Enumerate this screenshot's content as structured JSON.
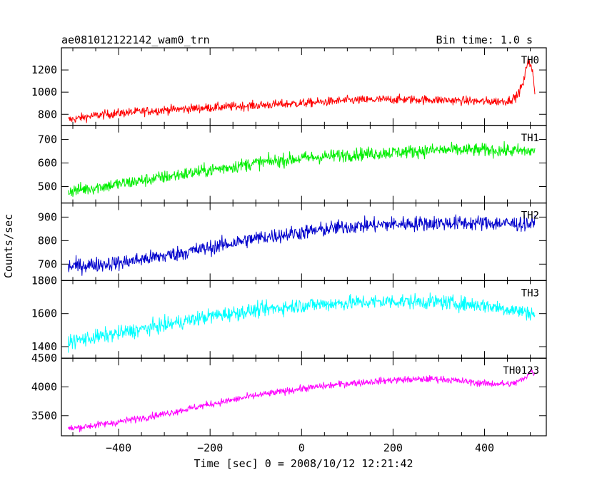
{
  "chart_data": {
    "type": "line",
    "title_left": "ae081012122142_wam0_trn",
    "title_right": "Bin time: 1.0 s",
    "xlabel": "Time [sec] 0 = 2008/10/12 12:21:42",
    "ylabel": "Counts/sec",
    "xlim": [
      -525,
      535
    ],
    "x_ticks": [
      -400,
      -200,
      0,
      200,
      400
    ],
    "x_minor_step": 50,
    "grid": false,
    "panels": [
      {
        "name": "TH0",
        "color": "#ff0000",
        "ylim": [
          700,
          1400
        ],
        "y_ticks": [
          800,
          1000,
          1200
        ],
        "points": [
          [
            -510,
            750
          ],
          [
            -450,
            790
          ],
          [
            -400,
            810
          ],
          [
            -300,
            840
          ],
          [
            -200,
            860
          ],
          [
            -100,
            880
          ],
          [
            0,
            900
          ],
          [
            100,
            925
          ],
          [
            200,
            935
          ],
          [
            300,
            930
          ],
          [
            400,
            915
          ],
          [
            450,
            920
          ],
          [
            470,
            960
          ],
          [
            485,
            1080
          ],
          [
            495,
            1300
          ],
          [
            505,
            1180
          ],
          [
            510,
            1000
          ]
        ],
        "noise": 40
      },
      {
        "name": "TH1",
        "color": "#00ee00",
        "ylim": [
          430,
          760
        ],
        "y_ticks": [
          500,
          600,
          700
        ],
        "points": [
          [
            -510,
            480
          ],
          [
            -400,
            510
          ],
          [
            -300,
            540
          ],
          [
            -200,
            570
          ],
          [
            -100,
            600
          ],
          [
            0,
            620
          ],
          [
            100,
            635
          ],
          [
            200,
            645
          ],
          [
            300,
            655
          ],
          [
            400,
            655
          ],
          [
            510,
            650
          ]
        ],
        "noise": 28
      },
      {
        "name": "TH2",
        "color": "#0000cc",
        "ylim": [
          630,
          960
        ],
        "y_ticks": [
          700,
          800,
          900
        ],
        "points": [
          [
            -510,
            690
          ],
          [
            -400,
            705
          ],
          [
            -300,
            735
          ],
          [
            -200,
            770
          ],
          [
            -100,
            810
          ],
          [
            0,
            835
          ],
          [
            100,
            860
          ],
          [
            200,
            870
          ],
          [
            300,
            875
          ],
          [
            400,
            875
          ],
          [
            510,
            870
          ]
        ],
        "noise": 32
      },
      {
        "name": "TH3",
        "color": "#00ffff",
        "ylim": [
          1330,
          1800
        ],
        "y_ticks": [
          1400,
          1600,
          1800
        ],
        "points": [
          [
            -510,
            1430
          ],
          [
            -400,
            1480
          ],
          [
            -300,
            1530
          ],
          [
            -200,
            1585
          ],
          [
            -100,
            1620
          ],
          [
            0,
            1650
          ],
          [
            100,
            1665
          ],
          [
            200,
            1675
          ],
          [
            300,
            1670
          ],
          [
            400,
            1650
          ],
          [
            510,
            1600
          ]
        ],
        "noise": 45
      },
      {
        "name": "TH0123",
        "color": "#ff00ff",
        "ylim": [
          3150,
          4500
        ],
        "y_ticks": [
          3500,
          4000,
          4500
        ],
        "points": [
          [
            -510,
            3270
          ],
          [
            -400,
            3390
          ],
          [
            -300,
            3530
          ],
          [
            -200,
            3700
          ],
          [
            -100,
            3850
          ],
          [
            0,
            3970
          ],
          [
            100,
            4060
          ],
          [
            200,
            4120
          ],
          [
            300,
            4140
          ],
          [
            400,
            4060
          ],
          [
            460,
            4050
          ],
          [
            490,
            4150
          ],
          [
            500,
            4300
          ],
          [
            510,
            4200
          ]
        ],
        "noise": 60
      }
    ]
  }
}
